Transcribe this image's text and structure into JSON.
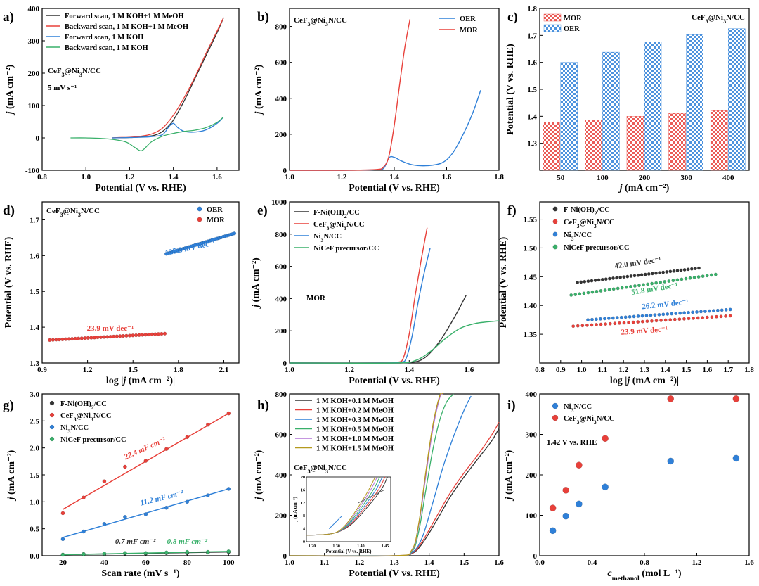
{
  "figure": "multi-panel electrochemistry figure",
  "colors": {
    "red": "#e8403a",
    "blue": "#2f80d8",
    "black": "#333333",
    "green": "#39b06a",
    "olive": "#b59a1e",
    "purple": "#b274d6",
    "orange": "#f28b3a"
  },
  "chart_data": [
    {
      "id": "a",
      "label": "a)",
      "type": "line",
      "title_annotations": [
        "CeF₃@Ni₃N/CC",
        "5 mV s⁻¹"
      ],
      "xlabel": "Potential (V vs. RHE)",
      "ylabel": "j (mA cm⁻²)",
      "xlim": [
        0.8,
        1.7
      ],
      "ylim": [
        -100,
        400
      ],
      "xticks": [
        0.8,
        1.0,
        1.2,
        1.4,
        1.6
      ],
      "yticks": [
        -100,
        0,
        100,
        200,
        300,
        400
      ],
      "series": [
        {
          "name": "Forward scan, 1 M KOH+1 M MeOH",
          "color": "#333333",
          "x": [
            1.12,
            1.2,
            1.25,
            1.3,
            1.33,
            1.36,
            1.4,
            1.45,
            1.5,
            1.55,
            1.6,
            1.63
          ],
          "y": [
            0,
            1,
            3,
            6,
            12,
            25,
            55,
            115,
            185,
            255,
            325,
            372
          ]
        },
        {
          "name": "Backward scan, 1 M KOH+1 M MeOH",
          "color": "#e8403a",
          "x": [
            1.63,
            1.6,
            1.55,
            1.5,
            1.45,
            1.4,
            1.35,
            1.3,
            1.25,
            1.2,
            1.15,
            1.12
          ],
          "y": [
            372,
            330,
            262,
            190,
            125,
            70,
            30,
            12,
            5,
            2,
            1,
            0
          ]
        },
        {
          "name": "Forward scan, 1 M KOH",
          "color": "#2f80d8",
          "x": [
            1.12,
            1.2,
            1.25,
            1.3,
            1.35,
            1.38,
            1.4,
            1.42,
            1.45,
            1.5,
            1.55,
            1.6,
            1.63
          ],
          "y": [
            0,
            1,
            2,
            4,
            10,
            35,
            45,
            32,
            20,
            18,
            25,
            45,
            65
          ]
        },
        {
          "name": "Backward scan, 1 M KOH",
          "color": "#39b06a",
          "x": [
            1.63,
            1.6,
            1.55,
            1.5,
            1.45,
            1.4,
            1.35,
            1.3,
            1.27,
            1.25,
            1.22,
            1.18,
            1.1,
            1.0,
            0.93
          ],
          "y": [
            65,
            48,
            32,
            24,
            20,
            14,
            5,
            -12,
            -32,
            -40,
            -28,
            -12,
            -3,
            0,
            0
          ]
        }
      ]
    },
    {
      "id": "b",
      "label": "b)",
      "type": "line",
      "title_annotations": [
        "CeF₃@Ni₃N/CC"
      ],
      "xlabel": "Potential (V vs. RHE)",
      "ylabel": "j (mA cm⁻²)",
      "xlim": [
        1.0,
        1.8
      ],
      "ylim": [
        0,
        900
      ],
      "xticks": [
        1.0,
        1.2,
        1.4,
        1.6,
        1.8
      ],
      "yticks": [
        0,
        200,
        400,
        600,
        800
      ],
      "series": [
        {
          "name": "OER",
          "color": "#2f80d8",
          "x": [
            1.0,
            1.2,
            1.33,
            1.36,
            1.38,
            1.4,
            1.43,
            1.47,
            1.52,
            1.58,
            1.62,
            1.66,
            1.7,
            1.73
          ],
          "y": [
            0,
            0,
            3,
            12,
            70,
            72,
            50,
            30,
            25,
            40,
            90,
            190,
            320,
            445
          ]
        },
        {
          "name": "MOR",
          "color": "#e8403a",
          "x": [
            1.0,
            1.2,
            1.33,
            1.36,
            1.38,
            1.4,
            1.42,
            1.44,
            1.46
          ],
          "y": [
            0,
            0,
            4,
            20,
            80,
            250,
            470,
            680,
            840
          ]
        }
      ]
    },
    {
      "id": "c",
      "label": "c)",
      "type": "bar",
      "title_annotations": [
        "CeF₃@Ni₃N/CC"
      ],
      "xlabel": "j (mA cm⁻²)",
      "ylabel": "Potential (V vs. RHE)",
      "ylim": [
        1.2,
        1.8
      ],
      "yticks": [
        1.3,
        1.4,
        1.5,
        1.6,
        1.7,
        1.8
      ],
      "categories": [
        "50",
        "100",
        "200",
        "300",
        "400"
      ],
      "series": [
        {
          "name": "MOR",
          "color": "#e8403a",
          "values": [
            1.378,
            1.387,
            1.4,
            1.411,
            1.421
          ]
        },
        {
          "name": "OER",
          "color": "#2f80d8",
          "values": [
            1.6,
            1.638,
            1.676,
            1.703,
            1.725
          ]
        }
      ]
    },
    {
      "id": "d",
      "label": "d)",
      "type": "scatter",
      "title_annotations": [
        "CeF₃@Ni₃N/CC"
      ],
      "xlabel": "log |j (mA cm⁻²)|",
      "ylabel": "Potential (V vs. RHE)",
      "xlim": [
        0.9,
        2.2
      ],
      "ylim": [
        1.3,
        1.75
      ],
      "xticks": [
        0.9,
        1.2,
        1.5,
        1.8,
        2.1
      ],
      "yticks": [
        1.3,
        1.4,
        1.5,
        1.6,
        1.7
      ],
      "series": [
        {
          "name": "OER",
          "color": "#2f80d8",
          "x0": 1.72,
          "x1": 2.17,
          "y0": 1.605,
          "y1": 1.662,
          "tafel": "125.3 mV dec⁻¹"
        },
        {
          "name": "MOR",
          "color": "#e8403a",
          "x0": 0.95,
          "x1": 1.71,
          "y0": 1.364,
          "y1": 1.382,
          "tafel": "23.9 mV dec⁻¹"
        }
      ]
    },
    {
      "id": "e",
      "label": "e)",
      "type": "line",
      "title_annotations": [
        "MOR"
      ],
      "xlabel": "Potential (V vs. RHE)",
      "ylabel": "j (mA cm⁻²)",
      "xlim": [
        1.0,
        1.7
      ],
      "ylim": [
        0,
        1000
      ],
      "xticks": [
        1.0,
        1.2,
        1.4,
        1.6
      ],
      "yticks": [
        0,
        200,
        400,
        600,
        800,
        1000
      ],
      "series": [
        {
          "name": "F-Ni(OH)₂/CC",
          "color": "#333333",
          "x": [
            1.0,
            1.3,
            1.4,
            1.45,
            1.5,
            1.55,
            1.59
          ],
          "y": [
            0,
            0,
            3,
            30,
            130,
            280,
            420
          ]
        },
        {
          "name": "CeF₃@Ni₃N/CC",
          "color": "#e8403a",
          "x": [
            1.0,
            1.3,
            1.36,
            1.38,
            1.4,
            1.42,
            1.44,
            1.46
          ],
          "y": [
            0,
            0,
            5,
            30,
            180,
            420,
            640,
            840
          ]
        },
        {
          "name": "Ni₃N/CC",
          "color": "#2f80d8",
          "x": [
            1.0,
            1.3,
            1.37,
            1.39,
            1.41,
            1.43,
            1.45,
            1.47
          ],
          "y": [
            0,
            0,
            5,
            30,
            170,
            380,
            560,
            715
          ]
        },
        {
          "name": "NiCeF precursor/CC",
          "color": "#39b06a",
          "x": [
            1.0,
            1.35,
            1.42,
            1.47,
            1.52,
            1.57,
            1.62,
            1.66,
            1.7
          ],
          "y": [
            0,
            0,
            15,
            70,
            150,
            215,
            245,
            255,
            262
          ]
        }
      ]
    },
    {
      "id": "f",
      "label": "f)",
      "type": "scatter",
      "xlabel": "log |j (mA cm⁻²)|",
      "ylabel": "Potential (V vs. RHE)",
      "xlim": [
        0.8,
        1.8
      ],
      "ylim": [
        1.3,
        1.58
      ],
      "xticks": [
        0.8,
        0.9,
        1.0,
        1.1,
        1.2,
        1.3,
        1.4,
        1.5,
        1.6,
        1.7,
        1.8
      ],
      "yticks": [
        1.35,
        1.4,
        1.45,
        1.5,
        1.55
      ],
      "series": [
        {
          "name": "F-Ni(OH)₂/CC",
          "color": "#333333",
          "x0": 0.98,
          "x1": 1.56,
          "y0": 1.44,
          "y1": 1.465,
          "tafel": "42.0 mV dec⁻¹"
        },
        {
          "name": "CeF₃@Ni₃N/CC",
          "color": "#e8403a",
          "x0": 0.96,
          "x1": 1.71,
          "y0": 1.364,
          "y1": 1.382,
          "tafel": "23.9 mV dec⁻¹"
        },
        {
          "name": "Ni₃N/CC",
          "color": "#2f80d8",
          "x0": 1.03,
          "x1": 1.71,
          "y0": 1.375,
          "y1": 1.393,
          "tafel": "26.2 mV dec⁻¹"
        },
        {
          "name": "NiCeF precursor/CC",
          "color": "#39b06a",
          "x0": 0.95,
          "x1": 1.64,
          "y0": 1.418,
          "y1": 1.454,
          "tafel": "51.8 mV dec⁻¹"
        }
      ]
    },
    {
      "id": "g",
      "label": "g)",
      "type": "scatter",
      "xlabel": "Scan rate (mV s⁻¹)",
      "ylabel": "j (mA cm⁻²)",
      "xlim": [
        10,
        105
      ],
      "ylim": [
        0,
        3.0
      ],
      "xticks": [
        20,
        40,
        60,
        80,
        100
      ],
      "yticks": [
        0.0,
        0.5,
        1.0,
        1.5,
        2.0,
        2.5,
        3.0
      ],
      "series": [
        {
          "name": "F-Ni(OH)₂/CC",
          "color": "#333333",
          "x": [
            20,
            30,
            40,
            50,
            60,
            70,
            80,
            90,
            100
          ],
          "y": [
            0.02,
            0.03,
            0.03,
            0.04,
            0.04,
            0.05,
            0.05,
            0.06,
            0.07
          ],
          "fit": [
            0.02,
            0.07
          ],
          "cdl": "0.7 mF cm⁻²"
        },
        {
          "name": "CeF₃@Ni₃N/CC",
          "color": "#e8403a",
          "x": [
            20,
            30,
            40,
            50,
            60,
            70,
            80,
            90,
            100
          ],
          "y": [
            0.79,
            1.08,
            1.38,
            1.65,
            1.76,
            1.98,
            2.2,
            2.43,
            2.64
          ],
          "fit": [
            0.86,
            2.64
          ],
          "cdl": "22.4 mF cm⁻²"
        },
        {
          "name": "Ni₃N/CC",
          "color": "#2f80d8",
          "x": [
            20,
            30,
            40,
            50,
            60,
            70,
            80,
            90,
            100
          ],
          "y": [
            0.31,
            0.45,
            0.59,
            0.72,
            0.77,
            0.89,
            1.0,
            1.12,
            1.24
          ],
          "fit": [
            0.34,
            1.24
          ],
          "cdl": "11.2 mF cm⁻²"
        },
        {
          "name": "NiCeF precursor/CC",
          "color": "#39b06a",
          "x": [
            20,
            30,
            40,
            50,
            60,
            70,
            80,
            90,
            100
          ],
          "y": [
            0.02,
            0.03,
            0.04,
            0.05,
            0.05,
            0.06,
            0.07,
            0.07,
            0.08
          ],
          "fit": [
            0.02,
            0.08
          ],
          "cdl": "0.8 mF cm⁻²"
        }
      ]
    },
    {
      "id": "h",
      "label": "h)",
      "type": "line",
      "title_annotations": [
        "CeF₃@Ni₃N/CC"
      ],
      "xlabel": "Potential (V vs. RHE)",
      "ylabel": "j (mA cm⁻²)",
      "xlim": [
        1.0,
        1.6
      ],
      "ylim": [
        0,
        800
      ],
      "xticks": [
        1.0,
        1.1,
        1.2,
        1.3,
        1.4,
        1.5,
        1.6
      ],
      "yticks": [
        0,
        200,
        400,
        600,
        800
      ],
      "series": [
        {
          "name": "1 M KOH+0.1 M MeOH",
          "color": "#333333",
          "x": [
            1.0,
            1.3,
            1.35,
            1.38,
            1.42,
            1.46,
            1.5,
            1.54,
            1.58,
            1.6
          ],
          "y": [
            0,
            0,
            10,
            60,
            170,
            290,
            390,
            480,
            570,
            630
          ]
        },
        {
          "name": "1 M KOH+0.2 M MeOH",
          "color": "#e8403a",
          "x": [
            1.0,
            1.3,
            1.35,
            1.38,
            1.42,
            1.46,
            1.5,
            1.54,
            1.58,
            1.6
          ],
          "y": [
            0,
            0,
            12,
            70,
            190,
            310,
            410,
            500,
            600,
            660
          ]
        },
        {
          "name": "1 M KOH+0.3 M MeOH",
          "color": "#2f80d8",
          "x": [
            1.0,
            1.3,
            1.35,
            1.38,
            1.41,
            1.44,
            1.47,
            1.5,
            1.52
          ],
          "y": [
            0,
            0,
            15,
            90,
            260,
            440,
            590,
            720,
            790
          ]
        },
        {
          "name": "1 M KOH+0.5 M MeOH",
          "color": "#39b06a",
          "x": [
            1.0,
            1.3,
            1.35,
            1.37,
            1.39,
            1.41,
            1.43,
            1.45,
            1.47
          ],
          "y": [
            0,
            0,
            20,
            120,
            320,
            520,
            670,
            760,
            800
          ]
        },
        {
          "name": "1 M KOH+1.0 M MeOH",
          "color": "#b274d6",
          "x": [
            1.0,
            1.3,
            1.35,
            1.37,
            1.39,
            1.41,
            1.43,
            1.44
          ],
          "y": [
            0,
            0,
            25,
            150,
            390,
            620,
            780,
            800
          ]
        },
        {
          "name": "1 M KOH+1.5 M MeOH",
          "color": "#b59a1e",
          "x": [
            1.0,
            1.3,
            1.35,
            1.37,
            1.39,
            1.41,
            1.43,
            1.44
          ],
          "y": [
            0,
            0,
            28,
            160,
            410,
            640,
            790,
            800
          ]
        }
      ],
      "inset": {
        "xlabel": "Potential (V vs. RHE)",
        "ylabel": "j (mA cm⁻²)",
        "xticks": [
          "1.20",
          "1.30",
          "1.40",
          "1.45"
        ],
        "yticks": [
          "0",
          "4",
          "8",
          "12",
          "16",
          "20"
        ]
      }
    },
    {
      "id": "i",
      "label": "i)",
      "type": "scatter",
      "title_annotations": [
        "1.42 V vs. RHE"
      ],
      "xlabel": "c_methanol (mol L⁻¹)",
      "ylabel": "j (mA cm⁻²)",
      "xlim": [
        0.0,
        1.6
      ],
      "ylim": [
        0,
        400
      ],
      "xticks": [
        0.0,
        0.4,
        0.8,
        1.2,
        1.6
      ],
      "yticks": [
        0,
        100,
        200,
        300,
        400
      ],
      "series": [
        {
          "name": "Ni₃N/CC",
          "color": "#2f80d8",
          "x": [
            0.1,
            0.2,
            0.3,
            0.5,
            1.0,
            1.5
          ],
          "y": [
            62,
            98,
            128,
            170,
            234,
            241
          ]
        },
        {
          "name": "CeF₃@Ni₃N/CC",
          "color": "#e8403a",
          "x": [
            0.1,
            0.2,
            0.3,
            0.5,
            1.0,
            1.5
          ],
          "y": [
            118,
            162,
            224,
            290,
            388,
            388
          ]
        }
      ]
    }
  ]
}
